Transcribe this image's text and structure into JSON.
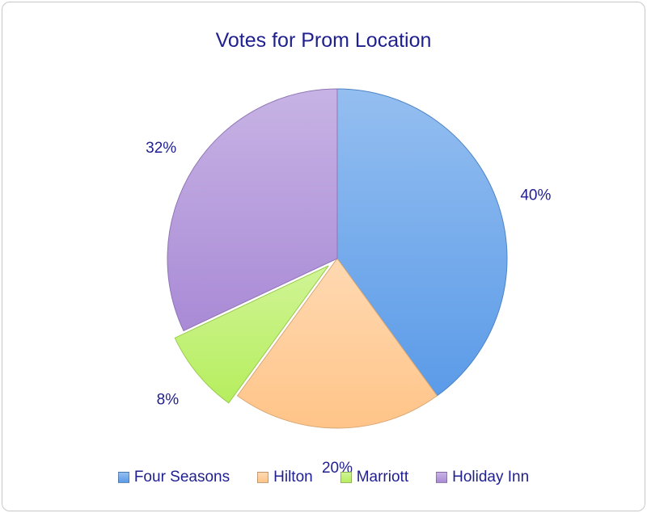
{
  "chart_data": {
    "type": "pie",
    "title": "Votes for Prom Location",
    "categories": [
      "Four Seasons",
      "Hilton",
      "Marriott",
      "Holiday Inn"
    ],
    "values": [
      40,
      20,
      8,
      32
    ],
    "labels": [
      "40%",
      "20%",
      "8%",
      "32%"
    ],
    "exploded": [
      "Marriott"
    ],
    "colors": [
      "#5b9be8",
      "#ffc488",
      "#b6ee5e",
      "#a98ad6"
    ],
    "legend_position": "bottom"
  }
}
